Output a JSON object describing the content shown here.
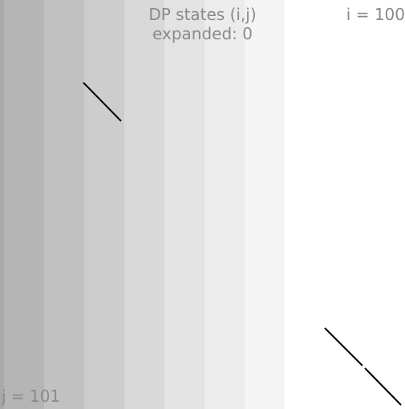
{
  "header": {
    "title": "DP states (i,j)",
    "expanded_text": "expanded: 0"
  },
  "axes": {
    "i_label": "i = 100",
    "j_label": "j = 101"
  },
  "colors": {
    "text": "#8a8a8a",
    "path": "#000000",
    "bands": [
      "#a9a9a9",
      "#b5b5b5",
      "#c1c1c1",
      "#cdcdcd",
      "#d9d9d9",
      "#e3e3e3",
      "#ececec",
      "#f4f4f4",
      "#ffffff"
    ]
  }
}
